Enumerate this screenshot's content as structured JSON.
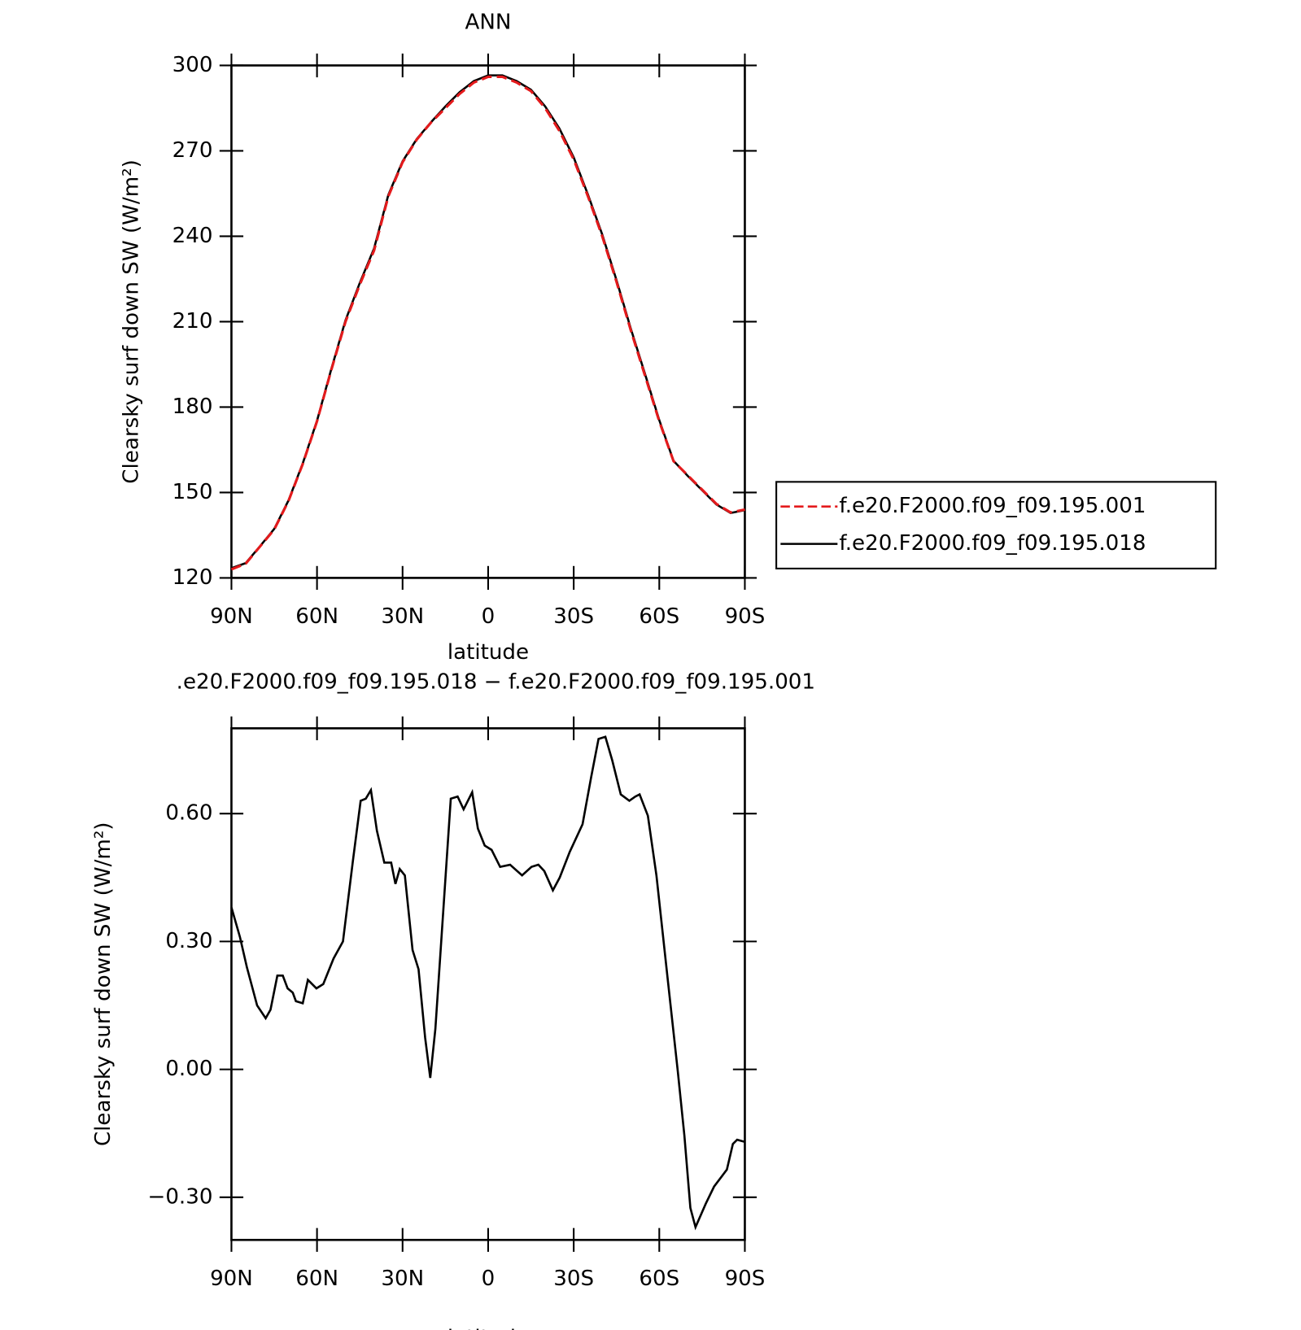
{
  "chart_data": [
    {
      "type": "line",
      "title": "ANN",
      "xlabel": "latitude",
      "ylabel": "Clearsky surf down SW (W/m²)",
      "x": [
        90,
        85,
        80,
        75,
        70,
        65,
        60,
        55,
        50,
        45,
        40,
        35,
        30,
        25,
        20,
        15,
        10,
        5,
        0,
        -5,
        -10,
        -15,
        -20,
        -25,
        -30,
        -35,
        -40,
        -45,
        -50,
        -55,
        -60,
        -65,
        -70,
        -75,
        -80,
        -85,
        -90
      ],
      "series": [
        {
          "name": "f.e20.F2000.f09_f09.195.001",
          "color": "#e41a1c",
          "dash": true,
          "values": [
            123,
            125,
            131,
            137,
            147,
            160,
            175,
            193,
            210,
            223,
            235,
            254,
            266,
            274,
            280,
            285,
            290,
            294,
            296,
            296,
            294,
            291,
            285,
            277,
            267,
            254,
            240,
            224,
            207,
            191,
            175,
            161,
            156,
            151,
            146,
            143,
            144
          ]
        },
        {
          "name": "f.e20.F2000.f09_f09.195.018",
          "color": "#000000",
          "dash": false,
          "values": [
            123.4,
            125.2,
            131.1,
            137.2,
            147.2,
            160.2,
            175.2,
            193.3,
            210.5,
            223.6,
            235.7,
            254.5,
            266.3,
            274.2,
            280.1,
            285.6,
            290.6,
            294.5,
            296.5,
            296.5,
            294.5,
            291.5,
            285.6,
            277.8,
            267.7,
            254.6,
            240.6,
            224.6,
            207.6,
            191.6,
            175.4,
            161.1,
            155.8,
            150.8,
            145.8,
            142.8,
            143.8
          ]
        }
      ],
      "xlim": [
        90,
        -90
      ],
      "xticks": [
        {
          "value": 90,
          "label": "90N"
        },
        {
          "value": 60,
          "label": "60N"
        },
        {
          "value": 30,
          "label": "30N"
        },
        0,
        {
          "value": -30,
          "label": "30S"
        },
        {
          "value": -60,
          "label": "60S"
        },
        {
          "value": -90,
          "label": "90S"
        }
      ],
      "ylim": [
        120,
        300
      ],
      "yticks": [
        120,
        150,
        180,
        210,
        240,
        270,
        300
      ],
      "legend": "right"
    },
    {
      "type": "line",
      "title": ".e20.F2000.f09_f09.195.018 − f.e20.F2000.f09_f09.195.001",
      "xlabel": "latitude",
      "ylabel": "Clearsky surf down SW (W/m²)",
      "x": [
        90,
        87,
        84.6,
        81,
        78,
        76.3,
        73.9,
        72,
        70.3,
        68.5,
        67.4,
        65,
        63.2,
        60.2,
        57.8,
        54.2,
        50.9,
        47.4,
        44.7,
        42.9,
        41.1,
        39,
        36.4,
        34,
        32.5,
        31,
        29.2,
        26.5,
        24.4,
        22.1,
        20.3,
        18.5,
        15.5,
        13.1,
        10.7,
        8.6,
        5.6,
        3.6,
        1.2,
        -1.2,
        -4.2,
        -7.7,
        -11.9,
        -15.2,
        -17.6,
        -19.7,
        -22.7,
        -25.1,
        -28.6,
        -33.1,
        -36.1,
        -38.7,
        -41.1,
        -43.5,
        -46.5,
        -49.5,
        -51.6,
        -53.1,
        -56,
        -59,
        -62.9,
        -66.5,
        -68.8,
        -70.9,
        -72.7,
        -76.3,
        -79.2,
        -83.7,
        -85.8,
        -87.3,
        -90
      ],
      "series": [
        {
          "name": null,
          "color": "#000000",
          "dash": false,
          "values": [
            0.38,
            0.31,
            0.24,
            0.15,
            0.12,
            0.14,
            0.22,
            0.22,
            0.19,
            0.18,
            0.16,
            0.155,
            0.21,
            0.19,
            0.2,
            0.26,
            0.3,
            0.49,
            0.63,
            0.635,
            0.655,
            0.56,
            0.485,
            0.485,
            0.435,
            0.47,
            0.455,
            0.28,
            0.235,
            0.075,
            -0.02,
            0.095,
            0.395,
            0.635,
            0.64,
            0.61,
            0.65,
            0.565,
            0.525,
            0.515,
            0.475,
            0.48,
            0.455,
            0.475,
            0.48,
            0.465,
            0.42,
            0.45,
            0.51,
            0.575,
            0.685,
            0.775,
            0.78,
            0.725,
            0.645,
            0.63,
            0.64,
            0.645,
            0.595,
            0.455,
            0.215,
            -0.005,
            -0.155,
            -0.325,
            -0.37,
            -0.315,
            -0.275,
            -0.235,
            -0.175,
            -0.165,
            -0.17
          ]
        }
      ],
      "xlim": [
        90,
        -90
      ],
      "xticks": [
        {
          "value": 90,
          "label": "90N"
        },
        {
          "value": 60,
          "label": "60N"
        },
        {
          "value": 30,
          "label": "30N"
        },
        0,
        {
          "value": -30,
          "label": "30S"
        },
        {
          "value": -60,
          "label": "60S"
        },
        {
          "value": -90,
          "label": "90S"
        }
      ],
      "ylim": [
        -0.4,
        0.8
      ],
      "yticks": [
        {
          "value": -0.3,
          "label": "−0.30"
        },
        {
          "value": 0,
          "label": "0.00"
        },
        {
          "value": 0.3,
          "label": "0.30"
        },
        {
          "value": 0.6,
          "label": "0.60"
        }
      ]
    }
  ]
}
